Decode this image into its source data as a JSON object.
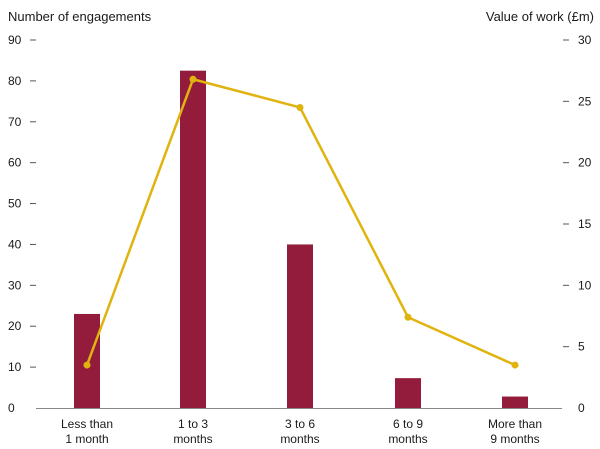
{
  "chart_data": {
    "type": "bar+line",
    "categories": [
      [
        "Less than",
        "1 month"
      ],
      [
        "1 to 3",
        "months"
      ],
      [
        "3 to 6",
        "months"
      ],
      [
        "6 to 9",
        "months"
      ],
      [
        "More than",
        "9 months"
      ]
    ],
    "series": [
      {
        "kind": "bar",
        "axis": "left",
        "values": [
          23,
          82.5,
          40,
          7.3,
          2.8
        ],
        "color": "#931c3c"
      },
      {
        "kind": "line",
        "axis": "right",
        "values": [
          3.5,
          26.8,
          24.5,
          7.4,
          3.5
        ],
        "color": "#e0b30e"
      }
    ],
    "left_axis": {
      "label": "Number of engagements",
      "ylim": [
        0,
        90
      ],
      "ticks": [
        "0",
        "10",
        "20",
        "30",
        "40",
        "50",
        "60",
        "70",
        "80",
        "90"
      ]
    },
    "right_axis": {
      "label": "Value of work (£m)",
      "ylim": [
        0,
        30
      ],
      "ticks": [
        "0",
        "5",
        "10",
        "15",
        "20",
        "25",
        "30"
      ]
    },
    "grid": false,
    "legend": "none"
  }
}
